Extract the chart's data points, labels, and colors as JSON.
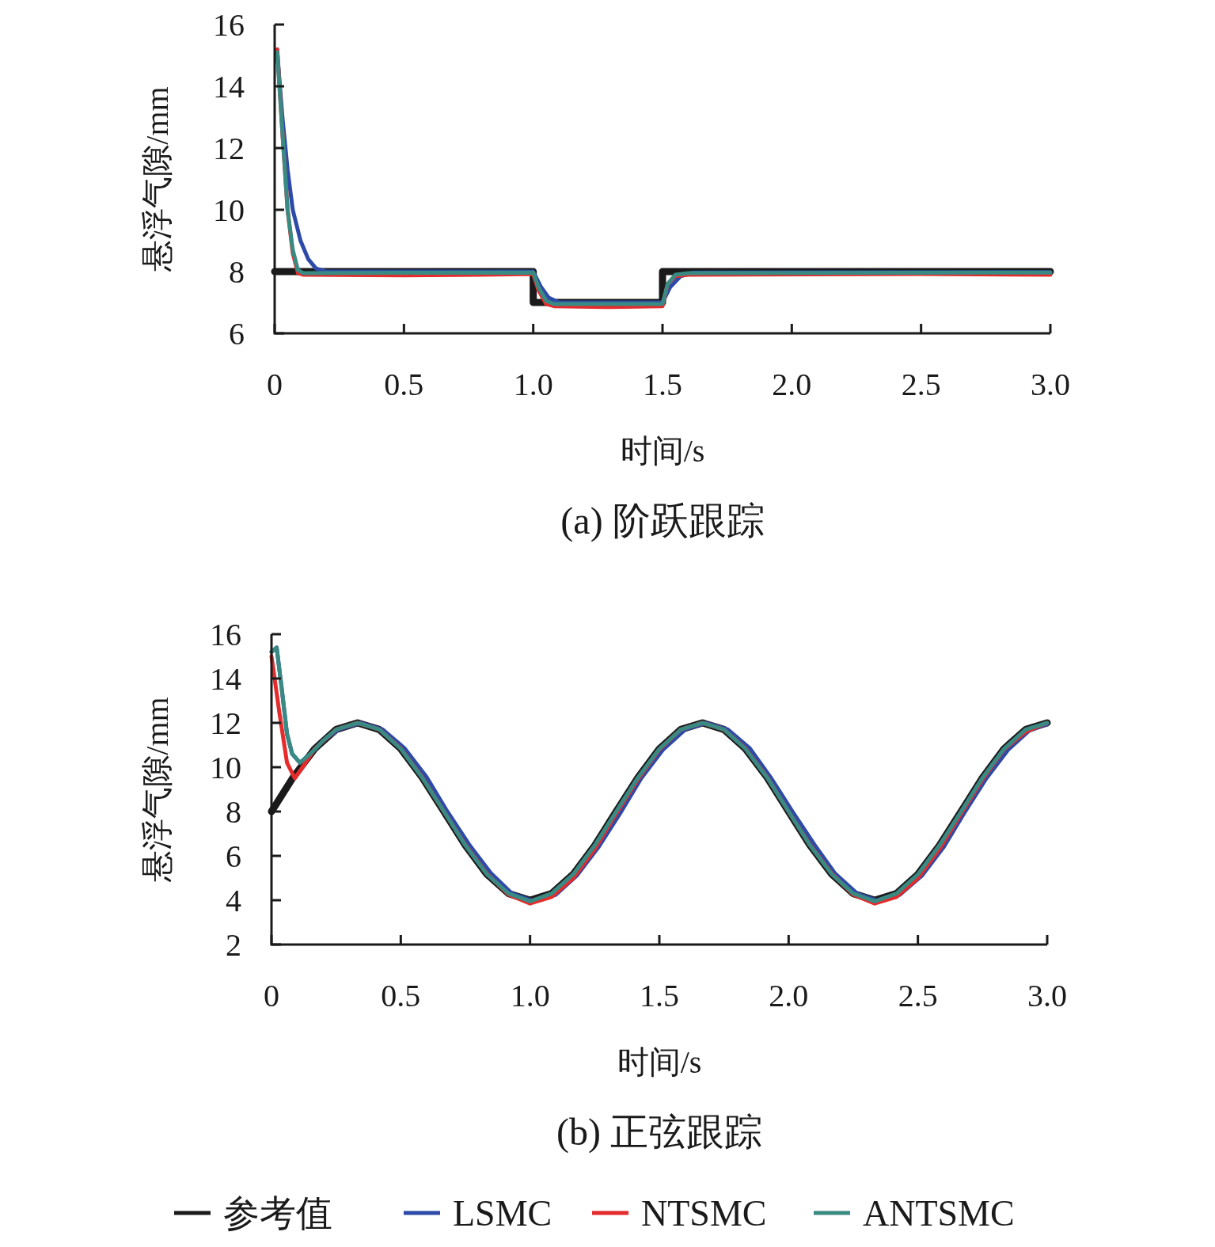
{
  "chart_data": [
    {
      "type": "line",
      "title": "(a) 阶跃跟踪",
      "xlabel": "时间/s",
      "ylabel": "悬浮气隙/mm",
      "xlim": [
        0,
        3
      ],
      "ylim": [
        6,
        16
      ],
      "xticks": [
        0,
        0.5,
        {
          "value": 1,
          "label": "1.0"
        },
        1.5,
        {
          "value": 2,
          "label": "2.0"
        },
        2.5,
        {
          "value": 3,
          "label": "3.0"
        }
      ],
      "yticks": [
        6,
        8,
        10,
        12,
        14,
        16
      ],
      "series": [
        {
          "color": "#1a1a1a",
          "x": [
            0,
            1,
            1,
            1.5,
            1.5,
            3
          ],
          "values": [
            8,
            8,
            7,
            7,
            8,
            8
          ]
        },
        {
          "color": "#2e4aa8",
          "x": [
            0.01,
            0.03,
            0.05,
            0.07,
            0.1,
            0.13,
            0.16,
            0.2,
            1.0,
            1.03,
            1.06,
            1.1,
            1.5,
            1.53,
            1.57,
            1.62,
            3.0
          ],
          "values": [
            15.1,
            13.0,
            11.3,
            10.0,
            9.0,
            8.4,
            8.1,
            8.0,
            8.0,
            7.5,
            7.15,
            7.0,
            7.0,
            7.5,
            7.85,
            7.97,
            7.98
          ]
        },
        {
          "color": "#e52b2b",
          "x": [
            0.01,
            0.03,
            0.05,
            0.07,
            0.09,
            0.11,
            0.5,
            0.8,
            1.0,
            1.02,
            1.05,
            1.08,
            1.3,
            1.5,
            1.52,
            1.55,
            1.6,
            2.5,
            3.0
          ],
          "values": [
            15.2,
            12.5,
            10.0,
            8.6,
            7.95,
            7.9,
            7.88,
            7.9,
            7.92,
            7.4,
            6.95,
            6.88,
            6.85,
            6.88,
            7.6,
            7.85,
            7.9,
            7.92,
            7.9
          ]
        },
        {
          "color": "#3a8a84",
          "x": [
            0.01,
            0.03,
            0.05,
            0.07,
            0.09,
            0.11,
            1.0,
            1.02,
            1.05,
            1.08,
            1.5,
            1.52,
            1.55,
            1.6,
            3.0
          ],
          "values": [
            15.1,
            12.5,
            10.0,
            8.7,
            8.05,
            7.95,
            7.97,
            7.5,
            7.05,
            6.95,
            6.95,
            7.6,
            7.9,
            7.95,
            7.97
          ]
        }
      ]
    },
    {
      "type": "line",
      "title": "(b) 正弦跟踪",
      "xlabel": "时间/s",
      "ylabel": "悬浮气隙/mm",
      "xlim": [
        0,
        3
      ],
      "ylim": [
        2,
        16
      ],
      "legend": "bottom",
      "xticks": [
        0,
        0.5,
        {
          "value": 1,
          "label": "1.0"
        },
        1.5,
        {
          "value": 2,
          "label": "2.0"
        },
        2.5,
        {
          "value": 3,
          "label": "3.0"
        }
      ],
      "yticks": [
        2,
        4,
        6,
        8,
        10,
        12,
        14,
        16
      ],
      "series": [
        {
          "name": "参考值",
          "color": "#1a1a1a",
          "x": [
            0,
            0.083,
            0.167,
            0.25,
            0.333,
            0.417,
            0.5,
            0.583,
            0.667,
            0.75,
            0.833,
            0.917,
            1.0,
            1.083,
            1.167,
            1.25,
            1.333,
            1.417,
            1.5,
            1.583,
            1.667,
            1.75,
            1.833,
            1.917,
            2.0,
            2.083,
            2.167,
            2.25,
            2.333,
            2.417,
            2.5,
            2.583,
            2.667,
            2.75,
            2.833,
            2.917,
            3.0
          ],
          "values": [
            8,
            9.53,
            10.83,
            11.7,
            12,
            11.7,
            10.83,
            9.53,
            8,
            6.47,
            5.17,
            4.3,
            4,
            4.3,
            5.17,
            6.47,
            8,
            9.53,
            10.83,
            11.7,
            12,
            11.7,
            10.83,
            9.53,
            8,
            6.47,
            5.17,
            4.3,
            4,
            4.3,
            5.17,
            6.47,
            8,
            9.53,
            10.83,
            11.7,
            12
          ]
        },
        {
          "name": "LSMC",
          "color": "#2e4aa8",
          "x": [
            0,
            0.02,
            0.04,
            0.06,
            0.08,
            0.11,
            0.15,
            0.2,
            0.26,
            0.345,
            0.43,
            0.515,
            0.6,
            0.68,
            0.765,
            0.85,
            0.93,
            1.015,
            1.1,
            1.18,
            1.265,
            1.35,
            1.43,
            1.515,
            1.6,
            1.68,
            1.765,
            1.85,
            1.93,
            2.015,
            2.1,
            2.18,
            2.265,
            2.35,
            2.43,
            2.515,
            2.6,
            2.68,
            2.765,
            2.85,
            2.93,
            3.0
          ],
          "values": [
            15.2,
            15.4,
            13.5,
            11.5,
            10.6,
            10.2,
            10.6,
            11.2,
            11.7,
            12,
            11.7,
            10.85,
            9.55,
            8,
            6.5,
            5.2,
            4.3,
            3.95,
            4.25,
            5.1,
            6.4,
            7.95,
            9.5,
            10.8,
            11.7,
            12,
            11.7,
            10.85,
            9.55,
            8,
            6.5,
            5.2,
            4.3,
            3.95,
            4.25,
            5.1,
            6.4,
            7.95,
            9.5,
            10.8,
            11.65,
            11.95
          ]
        },
        {
          "name": "NTSMC",
          "color": "#e52b2b",
          "x": [
            0,
            0.03,
            0.06,
            0.09,
            0.12,
            0.167,
            0.25,
            0.333,
            0.417,
            0.5,
            0.583,
            0.667,
            0.75,
            0.833,
            0.917,
            1.0,
            1.083,
            1.167,
            1.25,
            1.333,
            1.417,
            1.5,
            1.583,
            1.667,
            1.75,
            1.833,
            1.917,
            2.0,
            2.083,
            2.167,
            2.25,
            2.333,
            2.417,
            2.5,
            2.583,
            2.667,
            2.75,
            2.833,
            2.917,
            3.0
          ],
          "values": [
            15.0,
            12.5,
            10.2,
            9.5,
            10.0,
            10.83,
            11.7,
            12,
            11.7,
            10.85,
            9.55,
            8,
            6.5,
            5.2,
            4.25,
            3.85,
            4.15,
            5.0,
            6.3,
            7.9,
            9.45,
            10.8,
            11.7,
            12,
            11.7,
            10.85,
            9.55,
            8,
            6.5,
            5.2,
            4.25,
            3.85,
            4.15,
            5.0,
            6.3,
            7.9,
            9.45,
            10.8,
            11.6,
            12
          ]
        },
        {
          "name": "ANTSMC",
          "color": "#3a8a84",
          "x": [
            0,
            0.02,
            0.04,
            0.06,
            0.08,
            0.11,
            0.15,
            0.2,
            0.25,
            0.333,
            0.417,
            0.5,
            0.583,
            0.667,
            0.75,
            0.833,
            0.917,
            1.0,
            1.083,
            1.167,
            1.25,
            1.333,
            1.417,
            1.5,
            1.583,
            1.667,
            1.75,
            1.833,
            1.917,
            2.0,
            2.083,
            2.167,
            2.25,
            2.333,
            2.417,
            2.5,
            2.583,
            2.667,
            2.75,
            2.833,
            2.917,
            3.0
          ],
          "values": [
            15.2,
            15.4,
            13.5,
            11.5,
            10.6,
            10.2,
            10.6,
            11.2,
            11.7,
            12,
            11.7,
            10.83,
            9.53,
            8,
            6.47,
            5.17,
            4.3,
            3.95,
            4.3,
            5.17,
            6.47,
            8,
            9.53,
            10.83,
            11.7,
            12,
            11.7,
            10.83,
            9.53,
            8,
            6.47,
            5.17,
            4.3,
            3.95,
            4.3,
            5.17,
            6.47,
            8,
            9.53,
            10.83,
            11.7,
            12
          ]
        }
      ]
    }
  ]
}
